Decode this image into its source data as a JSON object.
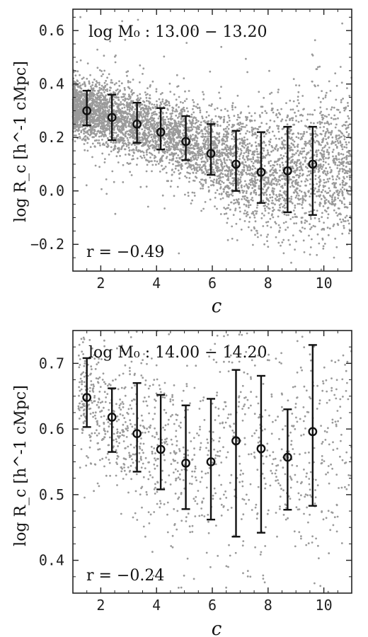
{
  "chart_data": [
    {
      "type": "scatter",
      "title": "",
      "xlabel": "c",
      "ylabel": "log R_c [h^-1 cMpc]",
      "xlim": [
        1.0,
        11.0
      ],
      "ylim": [
        -0.3,
        0.68
      ],
      "xticks": [
        2,
        4,
        6,
        8,
        10
      ],
      "yticks": [
        -0.2,
        0.0,
        0.2,
        0.4,
        0.6
      ],
      "ytick_labels": [
        "−0.2",
        "0.0",
        "0.2",
        "0.4",
        "0.6"
      ],
      "xtick_labels": [
        "2",
        "4",
        "6",
        "8",
        "10"
      ],
      "mass_label": "log M₀ : 13.00 − 13.20",
      "corr_label": "r = −0.49",
      "grid": false,
      "series": [
        {
          "kind": "binned_median",
          "x": [
            1.5,
            2.4,
            3.3,
            4.15,
            5.05,
            5.95,
            6.85,
            7.75,
            8.7,
            9.6
          ],
          "y": [
            0.3,
            0.275,
            0.25,
            0.22,
            0.185,
            0.14,
            0.1,
            0.07,
            0.075,
            0.1
          ],
          "err_low": [
            0.245,
            0.19,
            0.18,
            0.155,
            0.115,
            0.06,
            0.0,
            -0.045,
            -0.08,
            -0.09
          ],
          "err_high": [
            0.375,
            0.36,
            0.33,
            0.31,
            0.28,
            0.25,
            0.225,
            0.22,
            0.24,
            0.24
          ]
        }
      ],
      "scatter_color": "#9a9a9a",
      "marker_color": "#111111"
    },
    {
      "type": "scatter",
      "title": "",
      "xlabel": "c",
      "ylabel": "log R_c [h^-1 cMpc]",
      "xlim": [
        1.0,
        11.0
      ],
      "ylim": [
        0.35,
        0.75
      ],
      "xticks": [
        2,
        4,
        6,
        8,
        10
      ],
      "yticks": [
        0.4,
        0.5,
        0.6,
        0.7
      ],
      "ytick_labels": [
        "0.4",
        "0.5",
        "0.6",
        "0.7"
      ],
      "xtick_labels": [
        "2",
        "4",
        "6",
        "8",
        "10"
      ],
      "mass_label": "log M₀ : 14.00 − 14.20",
      "corr_label": "r = −0.24",
      "grid": false,
      "series": [
        {
          "kind": "binned_median",
          "x": [
            1.5,
            2.4,
            3.3,
            4.15,
            5.05,
            5.95,
            6.85,
            7.75,
            8.7,
            9.6
          ],
          "y": [
            0.648,
            0.618,
            0.593,
            0.569,
            0.548,
            0.55,
            0.582,
            0.57,
            0.557,
            0.596
          ],
          "err_low": [
            0.603,
            0.565,
            0.535,
            0.508,
            0.478,
            0.462,
            0.436,
            0.442,
            0.477,
            0.483
          ],
          "err_high": [
            0.708,
            0.662,
            0.67,
            0.652,
            0.636,
            0.646,
            0.69,
            0.681,
            0.63,
            0.728
          ]
        }
      ],
      "scatter_color": "#9a9a9a",
      "marker_color": "#111111"
    }
  ]
}
